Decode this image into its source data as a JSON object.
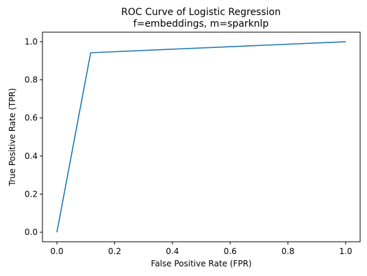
{
  "chart_data": {
    "type": "line",
    "title": "ROC Curve of Logistic Regression",
    "subtitle": "f=embeddings, m=sparknlp",
    "xlabel": "False Positive Rate (FPR)",
    "ylabel": "True Positive Rate (TPR)",
    "xlim": [
      -0.05,
      1.05
    ],
    "ylim": [
      -0.05,
      1.05
    ],
    "xticks": [
      0.0,
      0.2,
      0.4,
      0.6,
      0.8,
      1.0
    ],
    "yticks": [
      0.0,
      0.2,
      0.4,
      0.6,
      0.8,
      1.0
    ],
    "xtick_labels": [
      "0.0",
      "0.2",
      "0.4",
      "0.6",
      "0.8",
      "1.0"
    ],
    "ytick_labels": [
      "0.0",
      "0.2",
      "0.4",
      "0.6",
      "0.8",
      "1.0"
    ],
    "grid": false,
    "series": [
      {
        "color": "#1f77b4",
        "x": [
          0.0,
          0.117,
          1.0
        ],
        "y": [
          0.0,
          0.942,
          1.0
        ]
      }
    ]
  }
}
